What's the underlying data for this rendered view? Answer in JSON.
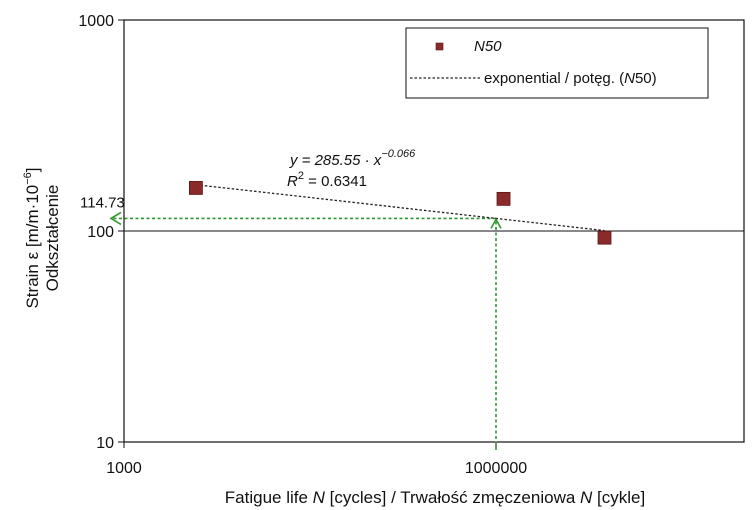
{
  "chart_data": {
    "type": "scatter",
    "xscale": "log",
    "yscale": "log",
    "xlim": [
      1000,
      100000000
    ],
    "ylim": [
      10,
      1000
    ],
    "x_ticks": [
      "1000",
      "1000000"
    ],
    "y_ticks": [
      "10",
      "100",
      "1000"
    ],
    "xlabel": "Fatigue life N [cycles] / Trwałość zmęczeniowa N [cykle]",
    "ylabel_line1": "Strain ε [m/m·10",
    "ylabel_exp": "−6",
    "ylabel_end": "]",
    "ylabel_line2": "Odkształcenie",
    "series": [
      {
        "name": "N50",
        "marker": "square",
        "color": "#8b2a2a",
        "points": [
          {
            "x": 3800,
            "y": 160
          },
          {
            "x": 1150000,
            "y": 142
          },
          {
            "x": 7500000,
            "y": 93
          }
        ]
      }
    ],
    "trendline": {
      "name": "exponential / potęg. (N50)",
      "x_range": [
        3800,
        7500000
      ],
      "coef": 285.55,
      "exponent": -0.066,
      "equation_prefix": "y = 285.55 · x",
      "equation_exp": "−0.066",
      "r2_label": "R",
      "r2_exp": "2",
      "r2_value": " = 0.6341"
    },
    "annotation": {
      "label": "114.73",
      "x": 1000000,
      "y": 114.73,
      "color": "#2e9a2e"
    },
    "legend": {
      "position": "top-right",
      "marker_label": "N50",
      "line_label_prefix": "exponential / potęg. (",
      "line_label_italic": "N",
      "line_label_suffix": "50)"
    }
  }
}
